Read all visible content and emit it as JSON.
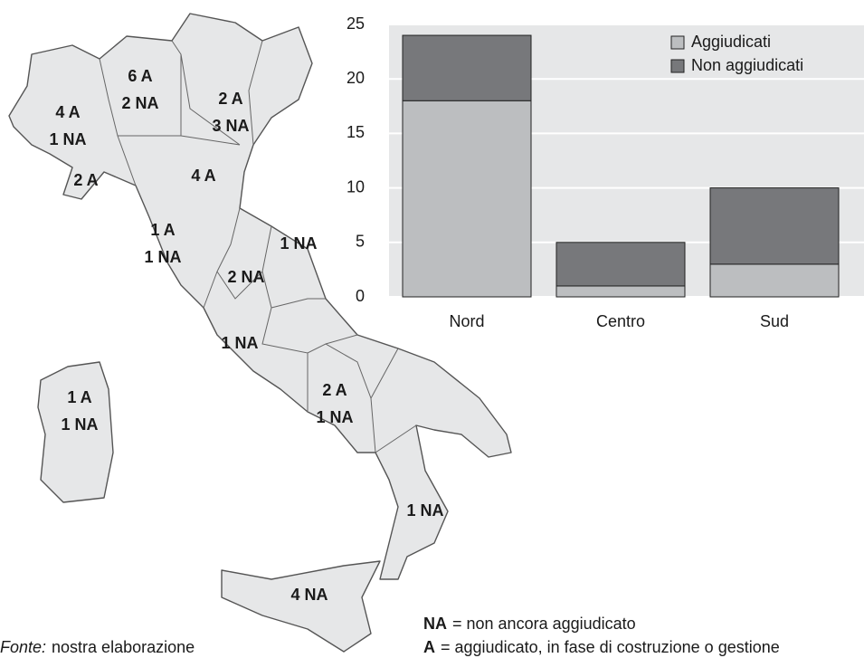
{
  "chart_data": {
    "type": "bar",
    "stacked": true,
    "categories": [
      "Nord",
      "Centro",
      "Sud"
    ],
    "series": [
      {
        "name": "Aggiudicati",
        "color": "#bcbec0",
        "values": [
          18,
          1,
          3
        ]
      },
      {
        "name": "Non aggiudicati",
        "color": "#77787b",
        "values": [
          6,
          4,
          7
        ]
      }
    ],
    "ylim": [
      0,
      25
    ],
    "yticks": [
      0,
      5,
      10,
      15,
      20,
      25
    ],
    "grid": true,
    "legend": "upper right"
  },
  "map": {
    "regions": [
      {
        "lines": [
          "4 A",
          "1 NA"
        ]
      },
      {
        "lines": [
          "6 A",
          "2 NA"
        ]
      },
      {
        "lines": [
          "2 A",
          "3 NA"
        ]
      },
      {
        "lines": [
          "2 A"
        ]
      },
      {
        "lines": [
          "4 A"
        ]
      },
      {
        "lines": [
          "1 A",
          "1 NA"
        ]
      },
      {
        "lines": [
          "1 NA"
        ]
      },
      {
        "lines": [
          "2 NA"
        ]
      },
      {
        "lines": [
          "1 NA"
        ]
      },
      {
        "lines": [
          "2 A",
          "1 NA"
        ]
      },
      {
        "lines": [
          "1 A",
          "1 NA"
        ]
      },
      {
        "lines": [
          "1 NA"
        ]
      },
      {
        "lines": [
          "4 NA"
        ]
      }
    ]
  },
  "notes": {
    "source_label": "Fonte:",
    "source": "nostra elaborazione",
    "legend": [
      {
        "key": "NA",
        "text": "= non ancora aggiudicato"
      },
      {
        "key": "A",
        "text": "= aggiudicato, in fase di costruzione o gestione"
      }
    ]
  }
}
